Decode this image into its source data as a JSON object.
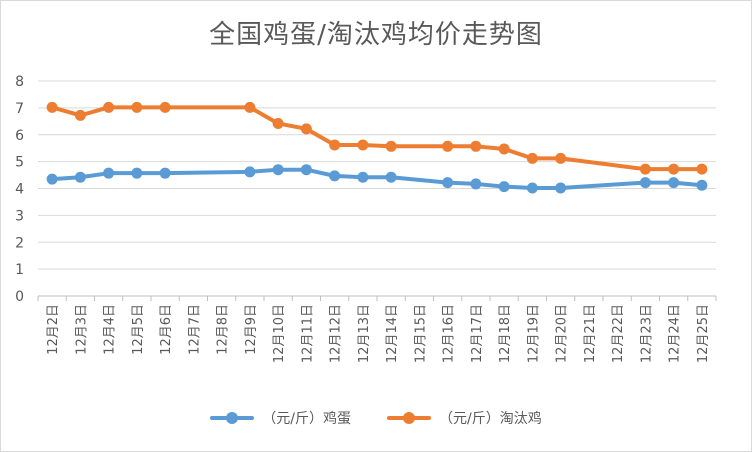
{
  "chart_data": {
    "type": "line",
    "title": "全国鸡蛋/淘汰鸡均价走势图",
    "categories": [
      "12月2日",
      "12月3日",
      "12月4日",
      "12月5日",
      "12月6日",
      "12月7日",
      "12月8日",
      "12月9日",
      "12月10日",
      "12月11日",
      "12月12日",
      "12月13日",
      "12月14日",
      "12月15日",
      "12月16日",
      "12月17日",
      "12月18日",
      "12月19日",
      "12月20日",
      "12月21日",
      "12月22日",
      "12月23日",
      "12月24日",
      "12月25日"
    ],
    "ylim": [
      0,
      8
    ],
    "yticks": [
      0,
      1,
      2,
      3,
      4,
      5,
      6,
      7,
      8
    ],
    "grid": true,
    "legend_position": "bottom",
    "series": [
      {
        "name": "（元/斤）鸡蛋",
        "color": "#5b9bd5",
        "values": [
          4.35,
          4.42,
          4.57,
          4.57,
          4.57,
          null,
          null,
          4.62,
          4.7,
          4.7,
          4.47,
          4.42,
          4.42,
          null,
          4.22,
          4.17,
          4.07,
          4.02,
          4.02,
          null,
          null,
          4.22,
          4.22,
          4.12
        ]
      },
      {
        "name": "（元/斤）淘汰鸡",
        "color": "#ed7d31",
        "values": [
          7.02,
          6.72,
          7.02,
          7.02,
          7.02,
          null,
          null,
          7.02,
          6.42,
          6.22,
          5.62,
          5.62,
          5.57,
          null,
          5.57,
          5.57,
          5.47,
          5.12,
          5.12,
          null,
          null,
          4.72,
          4.72,
          4.72
        ]
      }
    ]
  }
}
